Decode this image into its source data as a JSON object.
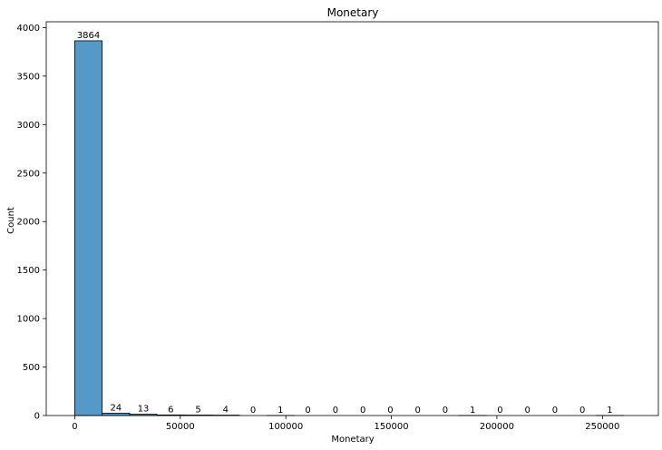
{
  "chart_data": {
    "type": "bar",
    "title": "Monetary",
    "xlabel": "Monetary",
    "ylabel": "Count",
    "bin_width": 13000,
    "x_start": 0,
    "values": [
      3864,
      24,
      13,
      6,
      5,
      4,
      0,
      1,
      0,
      0,
      0,
      0,
      0,
      0,
      1,
      0,
      0,
      0,
      0,
      1
    ],
    "xlim": [
      -13500,
      276500
    ],
    "ylim": [
      0,
      4060
    ],
    "xticks": [
      0,
      50000,
      100000,
      150000,
      200000,
      250000
    ],
    "yticks": [
      0,
      500,
      1000,
      1500,
      2000,
      2500,
      3000,
      3500,
      4000
    ],
    "grid": false,
    "bar_color": "#5499c7",
    "edge_color": "#000000"
  }
}
